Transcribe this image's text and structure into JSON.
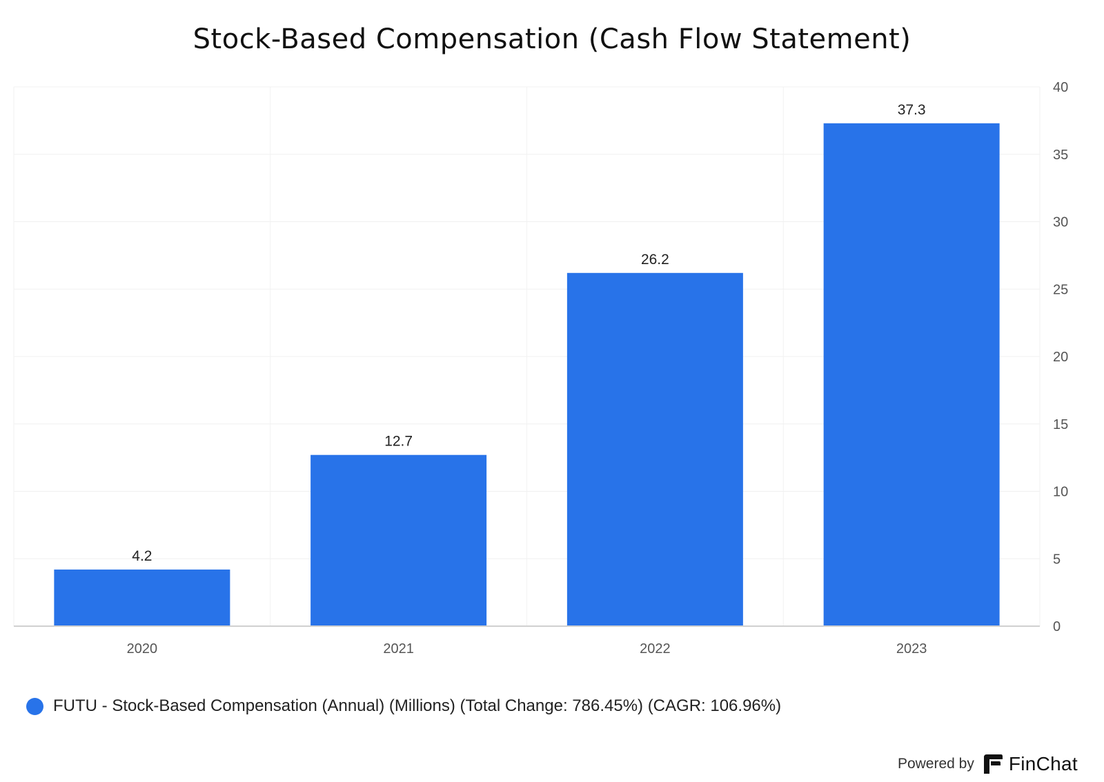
{
  "chart_data": {
    "type": "bar",
    "title": "Stock-Based Compensation (Cash Flow Statement)",
    "categories": [
      "2020",
      "2021",
      "2022",
      "2023"
    ],
    "series": [
      {
        "name": "FUTU - Stock-Based Compensation (Annual) (Millions) (Total Change: 786.45%) (CAGR: 106.96%)",
        "values": [
          4.2,
          12.7,
          26.2,
          37.3
        ],
        "data_labels": [
          "4.2",
          "12.7",
          "26.2",
          "37.3"
        ],
        "color": "#2873e9"
      }
    ],
    "ylim": [
      0,
      40
    ],
    "yticks": [
      0,
      5,
      10,
      15,
      20,
      25,
      30,
      35,
      40
    ],
    "y_axis_position": "right",
    "grid": true,
    "legend_position": "bottom-left",
    "xlabel": "",
    "ylabel": ""
  },
  "legend": {
    "label": "FUTU - Stock-Based Compensation (Annual) (Millions) (Total Change: 786.45%) (CAGR: 106.96%)",
    "color": "#2873e9"
  },
  "footer": {
    "powered_by": "Powered by",
    "brand": "FinChat",
    "brand_icon": "finchat-logo-icon"
  }
}
